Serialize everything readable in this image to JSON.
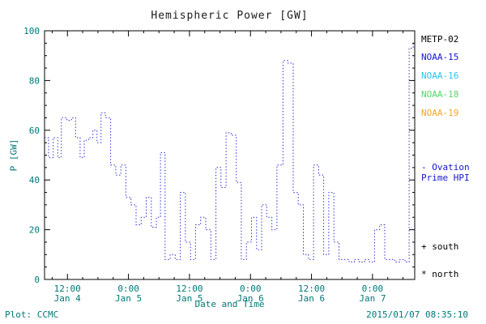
{
  "chart_data": {
    "type": "line",
    "title": "Hemispheric Power [GW]",
    "xlabel": "Date and Time",
    "ylabel": "P [GW]",
    "ylim": [
      0,
      100
    ],
    "yticks": [
      0,
      20,
      40,
      60,
      80,
      100
    ],
    "xlim_hours": [
      7.5,
      80.3
    ],
    "x_unit": "hours since 2015-01-04 00:00",
    "xticks": [
      {
        "hour": 12,
        "time": "12:00",
        "date": "Jan 4"
      },
      {
        "hour": 24,
        "time": "0:00",
        "date": "Jan 5"
      },
      {
        "hour": 36,
        "time": "12:00",
        "date": "Jan 5"
      },
      {
        "hour": 48,
        "time": "0:00",
        "date": "Jan 6"
      },
      {
        "hour": 60,
        "time": "12:00",
        "date": "Jan 6"
      },
      {
        "hour": 72,
        "time": "0:00",
        "date": "Jan 7"
      }
    ],
    "grid": false,
    "series": [
      {
        "name": "Ovation Prime HPI (NOAA-15)",
        "color": "#2323d2",
        "style": "dotted-step",
        "points": [
          [
            7.5,
            57
          ],
          [
            8.3,
            49
          ],
          [
            9.2,
            57
          ],
          [
            10.1,
            49
          ],
          [
            10.8,
            65
          ],
          [
            11.9,
            64
          ],
          [
            12.8,
            65
          ],
          [
            13.6,
            57
          ],
          [
            14.5,
            49
          ],
          [
            15.3,
            56
          ],
          [
            16.2,
            57
          ],
          [
            17.0,
            60
          ],
          [
            17.8,
            55
          ],
          [
            18.6,
            67
          ],
          [
            19.5,
            65
          ],
          [
            20.5,
            46
          ],
          [
            21.5,
            42
          ],
          [
            22.5,
            46
          ],
          [
            23.5,
            33
          ],
          [
            24.5,
            30
          ],
          [
            25.5,
            22
          ],
          [
            26.5,
            25
          ],
          [
            27.5,
            33
          ],
          [
            28.5,
            21
          ],
          [
            29.5,
            25
          ],
          [
            30.3,
            51
          ],
          [
            31.2,
            8
          ],
          [
            32.2,
            10
          ],
          [
            33.2,
            8
          ],
          [
            34.2,
            35
          ],
          [
            35.2,
            15
          ],
          [
            36.2,
            8
          ],
          [
            37.2,
            22
          ],
          [
            38.2,
            25
          ],
          [
            39.2,
            20
          ],
          [
            40.2,
            8
          ],
          [
            41.2,
            45
          ],
          [
            42.2,
            37
          ],
          [
            43.2,
            59
          ],
          [
            44.2,
            58
          ],
          [
            45.2,
            39
          ],
          [
            46.2,
            8
          ],
          [
            47.2,
            15
          ],
          [
            48.2,
            25
          ],
          [
            49.2,
            12
          ],
          [
            50.2,
            30
          ],
          [
            51.2,
            25
          ],
          [
            52.2,
            20
          ],
          [
            53.2,
            46
          ],
          [
            54.4,
            88
          ],
          [
            55.4,
            87
          ],
          [
            56.4,
            35
          ],
          [
            57.4,
            30
          ],
          [
            58.4,
            10
          ],
          [
            59.4,
            8
          ],
          [
            60.4,
            46
          ],
          [
            61.4,
            42
          ],
          [
            62.4,
            10
          ],
          [
            63.4,
            35
          ],
          [
            64.4,
            15
          ],
          [
            65.4,
            8
          ],
          [
            66.4,
            8
          ],
          [
            67.4,
            7
          ],
          [
            68.4,
            8
          ],
          [
            69.4,
            7
          ],
          [
            70.4,
            8
          ],
          [
            71.4,
            7
          ],
          [
            72.4,
            20
          ],
          [
            73.4,
            22
          ],
          [
            74.4,
            8
          ],
          [
            75.4,
            8
          ],
          [
            76.4,
            7
          ],
          [
            77.4,
            8
          ],
          [
            78.4,
            7
          ],
          [
            79.2,
            93
          ],
          [
            80.0,
            95
          ]
        ]
      }
    ]
  },
  "legend": {
    "satellites": [
      {
        "label": "METP-02",
        "color": "#000000"
      },
      {
        "label": "NOAA-15",
        "color": "#1515d0"
      },
      {
        "label": "NOAA-16",
        "color": "#27c4f0"
      },
      {
        "label": "NOAA-18",
        "color": "#54d66b"
      },
      {
        "label": "NOAA-19",
        "color": "#f5a623"
      }
    ],
    "ovation": [
      "- Ovation",
      "Prime HPI"
    ],
    "ovation_color": "#1515d0",
    "south": "+ south",
    "north": "* north"
  },
  "footer": {
    "plot_credit": "Plot: CCMC",
    "timestamp": "2015/01/07 08:35:10"
  },
  "colors": {
    "axis_text": "#007878",
    "title": "#1a1a1a",
    "frame": "#000000",
    "trace": "#2323d2"
  }
}
